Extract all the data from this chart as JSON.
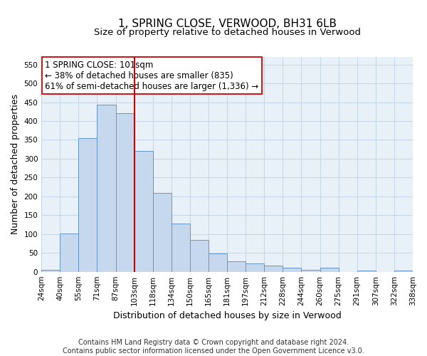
{
  "title": "1, SPRING CLOSE, VERWOOD, BH31 6LB",
  "subtitle": "Size of property relative to detached houses in Verwood",
  "xlabel": "Distribution of detached houses by size in Verwood",
  "ylabel": "Number of detached properties",
  "footer_line1": "Contains HM Land Registry data © Crown copyright and database right 2024.",
  "footer_line2": "Contains public sector information licensed under the Open Government Licence v3.0.",
  "categories": [
    "24sqm",
    "40sqm",
    "55sqm",
    "71sqm",
    "87sqm",
    "103sqm",
    "118sqm",
    "134sqm",
    "150sqm",
    "165sqm",
    "181sqm",
    "197sqm",
    "212sqm",
    "228sqm",
    "244sqm",
    "260sqm",
    "275sqm",
    "291sqm",
    "307sqm",
    "322sqm",
    "338sqm"
  ],
  "bar_labels": [
    "24sqm",
    "40sqm",
    "55sqm",
    "71sqm",
    "87sqm",
    "103sqm",
    "118sqm",
    "134sqm",
    "150sqm",
    "165sqm",
    "181sqm",
    "197sqm",
    "212sqm",
    "228sqm",
    "244sqm",
    "260sqm",
    "275sqm",
    "291sqm",
    "307sqm",
    "322sqm"
  ],
  "values": [
    5,
    101,
    354,
    444,
    421,
    321,
    210,
    127,
    85,
    49,
    28,
    22,
    17,
    10,
    5,
    10,
    0,
    4,
    0,
    3
  ],
  "bar_color": "#c5d8ee",
  "bar_edge_color": "#6695c8",
  "vline_color": "#cc0000",
  "vline_x": 5,
  "annotation_text": "1 SPRING CLOSE: 101sqm\n← 38% of detached houses are smaller (835)\n61% of semi-detached houses are larger (1,336) →",
  "ylim": [
    0,
    570
  ],
  "yticks": [
    0,
    50,
    100,
    150,
    200,
    250,
    300,
    350,
    400,
    450,
    500,
    550
  ],
  "grid_color": "#c8d8e8",
  "bg_color": "#e8f0f8",
  "title_fontsize": 11,
  "subtitle_fontsize": 9.5,
  "label_fontsize": 9,
  "tick_fontsize": 7.5,
  "annotation_fontsize": 8.5,
  "footer_fontsize": 7
}
